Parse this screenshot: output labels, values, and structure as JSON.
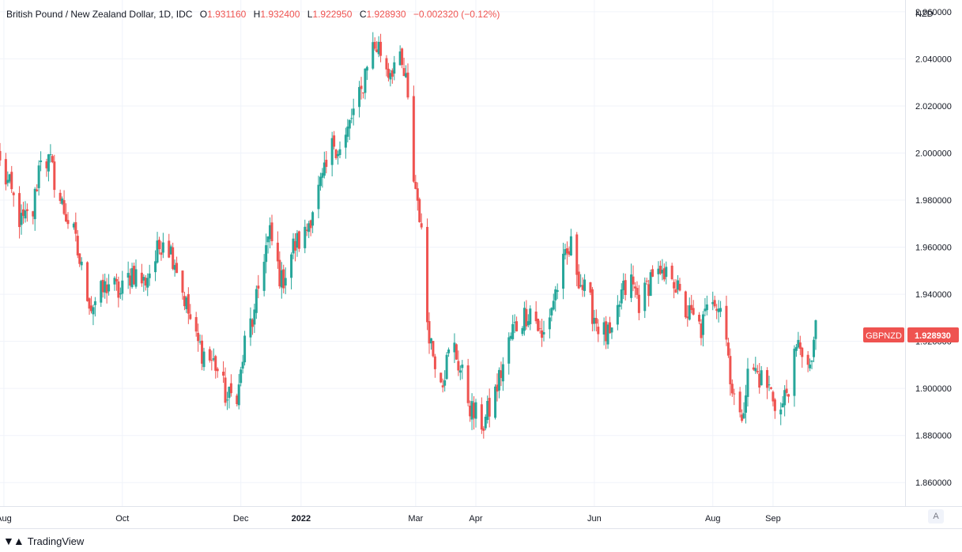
{
  "legend": {
    "symbol": "British Pound / New Zealand Dollar, 1D, IDC",
    "open_label": "O",
    "open": "1.931160",
    "high_label": "H",
    "high": "1.932400",
    "low_label": "L",
    "low": "1.922950",
    "close_label": "C",
    "close": "1.928930",
    "change": "−0.002320 (−0.12%)"
  },
  "branding": {
    "name": "TradingView",
    "logo": "tradingview-logo-icon"
  },
  "scale_button": "A",
  "colors": {
    "up": "#26a69a",
    "down": "#ef5350",
    "grid": "#f0f3fa",
    "axis_text": "#131722",
    "price_tag": "#ef5350"
  },
  "chart_data": {
    "type": "candlestick",
    "currency": "NZD",
    "symbol_tag": "GBPNZD",
    "last_price": 1.92893,
    "last_price_label": "1.928930",
    "ylim": [
      1.85,
      2.065
    ],
    "y_ticks": [
      1.86,
      1.88,
      1.9,
      1.92,
      1.94,
      1.96,
      1.98,
      2.0,
      2.02,
      2.04,
      2.06
    ],
    "y_tick_labels": [
      "1.860000",
      "1.880000",
      "1.900000",
      "1.920000",
      "1.940000",
      "1.960000",
      "1.980000",
      "2.000000",
      "2.020000",
      "2.040000",
      "2.060000"
    ],
    "x_ticks": [
      {
        "label": "Aug",
        "date": "2021-08-01"
      },
      {
        "label": "Oct",
        "date": "2021-10-01"
      },
      {
        "label": "Dec",
        "date": "2021-12-01"
      },
      {
        "label": "2022",
        "date": "2022-01-01",
        "bold": true
      },
      {
        "label": "Mar",
        "date": "2022-03-01"
      },
      {
        "label": "Apr",
        "date": "2022-04-01"
      },
      {
        "label": "Jun",
        "date": "2022-06-01"
      },
      {
        "label": "Aug",
        "date": "2022-08-01"
      },
      {
        "label": "Sep",
        "date": "2022-09-01"
      }
    ],
    "grid": true,
    "close_path": [
      [
        "2021-07-30",
        1.995
      ],
      [
        "2021-08-04",
        1.985
      ],
      [
        "2021-08-10",
        1.97
      ],
      [
        "2021-08-16",
        1.975
      ],
      [
        "2021-08-20",
        2.0
      ],
      [
        "2021-08-25",
        1.995
      ],
      [
        "2021-08-30",
        1.98
      ],
      [
        "2021-09-06",
        1.965
      ],
      [
        "2021-09-10",
        1.95
      ],
      [
        "2021-09-15",
        1.935
      ],
      [
        "2021-09-20",
        1.94
      ],
      [
        "2021-09-24",
        1.945
      ],
      [
        "2021-09-30",
        1.94
      ],
      [
        "2021-10-06",
        1.95
      ],
      [
        "2021-10-12",
        1.945
      ],
      [
        "2021-10-18",
        1.955
      ],
      [
        "2021-10-22",
        1.965
      ],
      [
        "2021-10-28",
        1.955
      ],
      [
        "2021-11-03",
        1.935
      ],
      [
        "2021-11-08",
        1.92
      ],
      [
        "2021-11-12",
        1.915
      ],
      [
        "2021-11-18",
        1.91
      ],
      [
        "2021-11-24",
        1.895
      ],
      [
        "2021-11-30",
        1.9
      ],
      [
        "2021-12-04",
        1.925
      ],
      [
        "2021-12-08",
        1.93
      ],
      [
        "2021-12-12",
        1.955
      ],
      [
        "2021-12-16",
        1.965
      ],
      [
        "2021-12-22",
        1.945
      ],
      [
        "2021-12-28",
        1.96
      ],
      [
        "2022-01-03",
        1.965
      ],
      [
        "2022-01-08",
        1.98
      ],
      [
        "2022-01-13",
        1.99
      ],
      [
        "2022-01-18",
        2.005
      ],
      [
        "2022-01-22",
        2.0
      ],
      [
        "2022-01-27",
        2.015
      ],
      [
        "2022-02-01",
        2.025
      ],
      [
        "2022-02-05",
        2.045
      ],
      [
        "2022-02-10",
        2.045
      ],
      [
        "2022-02-15",
        2.035
      ],
      [
        "2022-02-20",
        2.04
      ],
      [
        "2022-02-24",
        2.03
      ],
      [
        "2022-02-28",
        1.99
      ],
      [
        "2022-03-03",
        1.975
      ],
      [
        "2022-03-07",
        1.93
      ],
      [
        "2022-03-10",
        1.915
      ],
      [
        "2022-03-15",
        1.905
      ],
      [
        "2022-03-20",
        1.92
      ],
      [
        "2022-03-25",
        1.905
      ],
      [
        "2022-03-30",
        1.89
      ],
      [
        "2022-04-05",
        1.885
      ],
      [
        "2022-04-10",
        1.895
      ],
      [
        "2022-04-15",
        1.91
      ],
      [
        "2022-04-20",
        1.925
      ],
      [
        "2022-04-25",
        1.93
      ],
      [
        "2022-04-30",
        1.935
      ],
      [
        "2022-05-05",
        1.92
      ],
      [
        "2022-05-10",
        1.935
      ],
      [
        "2022-05-15",
        1.95
      ],
      [
        "2022-05-20",
        1.96
      ],
      [
        "2022-05-25",
        1.945
      ],
      [
        "2022-05-30",
        1.935
      ],
      [
        "2022-06-04",
        1.925
      ],
      [
        "2022-06-10",
        1.92
      ],
      [
        "2022-06-15",
        1.94
      ],
      [
        "2022-06-20",
        1.945
      ],
      [
        "2022-06-25",
        1.935
      ],
      [
        "2022-07-01",
        1.95
      ],
      [
        "2022-07-06",
        1.945
      ],
      [
        "2022-07-11",
        1.95
      ],
      [
        "2022-07-16",
        1.935
      ],
      [
        "2022-07-21",
        1.93
      ],
      [
        "2022-07-26",
        1.925
      ],
      [
        "2022-08-01",
        1.94
      ],
      [
        "2022-08-06",
        1.935
      ],
      [
        "2022-08-11",
        1.9
      ],
      [
        "2022-08-15",
        1.885
      ],
      [
        "2022-08-20",
        1.91
      ],
      [
        "2022-08-25",
        1.905
      ],
      [
        "2022-08-30",
        1.9
      ],
      [
        "2022-09-05",
        1.89
      ],
      [
        "2022-09-10",
        1.905
      ],
      [
        "2022-09-15",
        1.92
      ],
      [
        "2022-09-20",
        1.905
      ],
      [
        "2022-09-23",
        1.929
      ]
    ]
  }
}
